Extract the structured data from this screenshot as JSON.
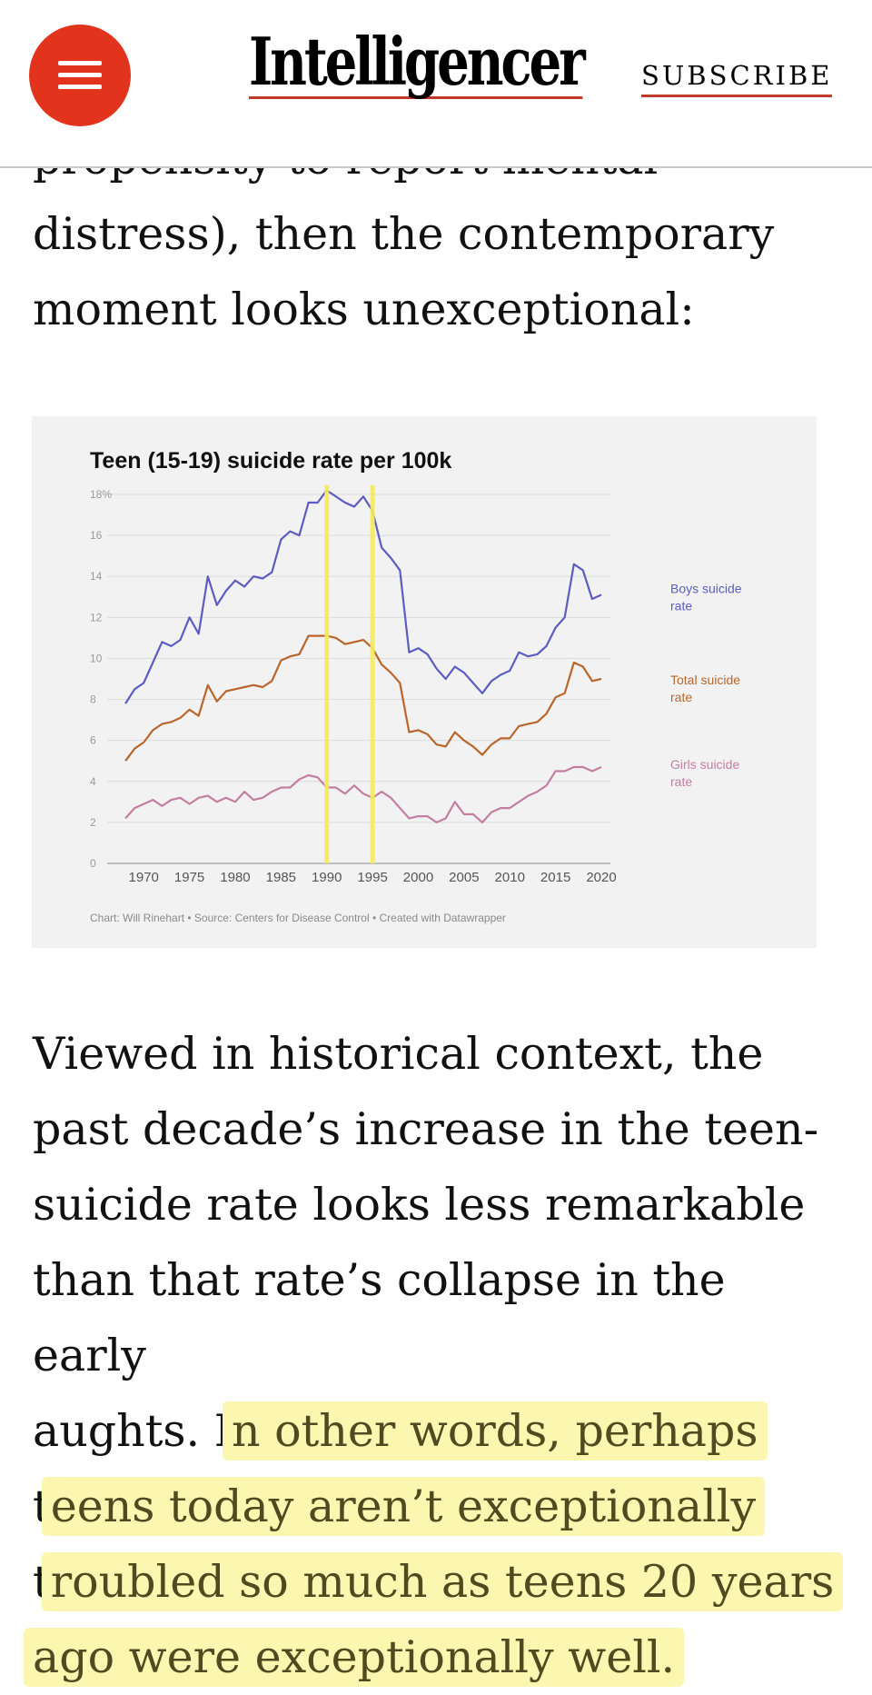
{
  "header": {
    "logo_text": "Intelligencer",
    "subscribe_label": "SUBSCRIBE",
    "accent_color": "#e2341d",
    "menu_icon": "hamburger-menu-icon"
  },
  "article": {
    "clipped_line": "propensity to report mental",
    "para1_lines": [
      "distress), then the contemporary",
      "moment looks unexceptional:"
    ],
    "para2_lines": [
      {
        "plain": "Viewed in historical context, the",
        "highlight": ""
      },
      {
        "plain": "past decade’s increase in the teen-",
        "highlight": ""
      },
      {
        "plain": "suicide rate looks less remarkable",
        "highlight": ""
      },
      {
        "plain": "than that rate’s collapse in the early",
        "highlight": ""
      },
      {
        "plain": "aughts. I",
        "highlight": "n other words, perhaps"
      },
      {
        "plain": "t",
        "highlight": "eens today aren’t exceptionally"
      },
      {
        "plain": "t",
        "highlight": "roubled so much as teens 20 years"
      },
      {
        "plain": "",
        "highlight": "ago were exceptionally well."
      }
    ],
    "highlight_color": "#fbf6b0"
  },
  "chart_data": {
    "type": "line",
    "title": "Teen (15-19) suicide rate per 100k",
    "ylim": [
      0,
      18
    ],
    "yticks": [
      "0",
      "2",
      "4",
      "6",
      "8",
      "10",
      "12",
      "14",
      "16",
      "18%"
    ],
    "xlim": [
      1967,
      2020
    ],
    "xticks": [
      "1970",
      "1975",
      "1980",
      "1985",
      "1990",
      "1995",
      "2000",
      "2005",
      "2010",
      "2015",
      "2020"
    ],
    "grid": true,
    "x": [
      1968,
      1969,
      1970,
      1971,
      1972,
      1973,
      1974,
      1975,
      1976,
      1977,
      1978,
      1979,
      1980,
      1981,
      1982,
      1983,
      1984,
      1985,
      1986,
      1987,
      1988,
      1989,
      1990,
      1991,
      1992,
      1993,
      1994,
      1995,
      1996,
      1997,
      1998,
      1999,
      2000,
      2001,
      2002,
      2003,
      2004,
      2005,
      2006,
      2007,
      2008,
      2009,
      2010,
      2011,
      2012,
      2013,
      2014,
      2015,
      2016,
      2017,
      2018,
      2019,
      2020
    ],
    "series": [
      {
        "name": "Boys suicide rate",
        "color": "#5c5cc2",
        "values": [
          7.8,
          8.5,
          8.8,
          9.8,
          10.8,
          10.6,
          10.9,
          12.0,
          11.2,
          14.0,
          12.6,
          13.3,
          13.8,
          13.5,
          14.0,
          13.9,
          14.2,
          15.8,
          16.2,
          16.0,
          17.6,
          17.6,
          18.2,
          17.9,
          17.6,
          17.4,
          17.9,
          17.2,
          15.4,
          14.9,
          14.3,
          10.3,
          10.5,
          10.2,
          9.5,
          9.0,
          9.6,
          9.3,
          8.8,
          8.3,
          8.9,
          9.2,
          9.4,
          10.3,
          10.1,
          10.2,
          10.6,
          11.5,
          12.0,
          14.6,
          14.3,
          12.9,
          13.1
        ]
      },
      {
        "name": "Total suicide rate",
        "color": "#b8662c",
        "values": [
          5.0,
          5.6,
          5.9,
          6.5,
          6.8,
          6.9,
          7.1,
          7.5,
          7.2,
          8.7,
          7.9,
          8.4,
          8.5,
          8.6,
          8.7,
          8.6,
          8.9,
          9.9,
          10.1,
          10.2,
          11.1,
          11.1,
          11.1,
          11.0,
          10.7,
          10.8,
          10.9,
          10.5,
          9.7,
          9.3,
          8.8,
          6.4,
          6.5,
          6.3,
          5.8,
          5.7,
          6.4,
          6.0,
          5.7,
          5.3,
          5.8,
          6.1,
          6.1,
          6.7,
          6.8,
          6.9,
          7.3,
          8.1,
          8.3,
          9.8,
          9.6,
          8.9,
          9.0
        ]
      },
      {
        "name": "Girls suicide rate",
        "color": "#c47fa0",
        "values": [
          2.2,
          2.7,
          2.9,
          3.1,
          2.8,
          3.1,
          3.2,
          2.9,
          3.2,
          3.3,
          3.0,
          3.2,
          3.0,
          3.5,
          3.1,
          3.2,
          3.5,
          3.7,
          3.7,
          4.1,
          4.3,
          4.2,
          3.7,
          3.7,
          3.4,
          3.8,
          3.4,
          3.2,
          3.5,
          3.2,
          2.7,
          2.2,
          2.3,
          2.3,
          2.0,
          2.2,
          3.0,
          2.4,
          2.4,
          2.0,
          2.5,
          2.7,
          2.7,
          3.0,
          3.3,
          3.5,
          3.8,
          4.5,
          4.5,
          4.7,
          4.7,
          4.5,
          4.7
        ]
      }
    ],
    "series_labels": [
      [
        "Boys suicide",
        "rate"
      ],
      [
        "Total suicide",
        "rate"
      ],
      [
        "Girls suicide",
        "rate"
      ]
    ],
    "annotations": [
      {
        "type": "vertical-line",
        "x": 1990,
        "color": "#f5ec5a"
      },
      {
        "type": "vertical-line",
        "x": 1995,
        "color": "#f5ec5a"
      }
    ],
    "credit": "Chart: Will Rinehart • Source: Centers for Disease Control • Created with Datawrapper",
    "background": "#f2f2f2"
  }
}
